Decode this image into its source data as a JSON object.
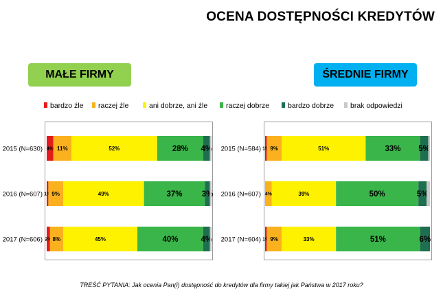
{
  "title": "OCENA DOSTĘPNOŚCI KREDYTÓW",
  "footnote": "TREŚĆ PYTANIA: Jak ocenia Pan(i) dostępność do kredytów dla firmy takiej jak Państwa w 2017 roku?",
  "colors": {
    "bardzo_zle": "#e41a1c",
    "raczej_zle": "#fbb11d",
    "ani_ani": "#fff200",
    "raczej_dobrze": "#3ab54a",
    "bardzo_dobrze": "#1e6f4f",
    "brak": "#c8c8c8"
  },
  "legend": [
    {
      "label": "bardzo źle",
      "color": "#e41a1c"
    },
    {
      "label": "raczej źle",
      "color": "#fbb11d"
    },
    {
      "label": "ani dobrze, ani źle",
      "color": "#fff200"
    },
    {
      "label": "raczej dobrze",
      "color": "#3ab54a"
    },
    {
      "label": "bardzo dobrze",
      "color": "#1e6f4f"
    },
    {
      "label": "brak odpowiedzi",
      "color": "#c8c8c8"
    }
  ],
  "chart_data": [
    {
      "type": "bar",
      "stacked": true,
      "orientation": "horizontal",
      "title": "MAŁE FIRMY",
      "categories": [
        "2015 (N=630)",
        "2016 (N=607)",
        "2017 (N=606)"
      ],
      "series": [
        {
          "name": "bardzo źle",
          "values": [
            4,
            1,
            2
          ],
          "labels": [
            "4%",
            "1%",
            "2%"
          ]
        },
        {
          "name": "raczej źle",
          "values": [
            11,
            9,
            8
          ],
          "labels": [
            "11%",
            "9%",
            "8%"
          ]
        },
        {
          "name": "ani dobrze, ani źle",
          "values": [
            52,
            49,
            45
          ],
          "labels": [
            "52%",
            "49%",
            "45%"
          ]
        },
        {
          "name": "raczej dobrze",
          "values": [
            28,
            37,
            40
          ],
          "labels": [
            "28%",
            "37%",
            "40%"
          ]
        },
        {
          "name": "bardzo dobrze",
          "values": [
            4,
            3,
            4
          ],
          "labels": [
            "4%",
            "3%",
            "4%"
          ]
        },
        {
          "name": "brak odpowiedzi",
          "values": [
            1,
            1,
            1
          ],
          "labels": [
            "",
            "",
            ""
          ]
        }
      ]
    },
    {
      "type": "bar",
      "stacked": true,
      "orientation": "horizontal",
      "title": "ŚREDNIE FIRMY",
      "categories": [
        "2015 (N=584)",
        "2016 (N=607)",
        "2017 (N=604)"
      ],
      "series": [
        {
          "name": "bardzo źle",
          "values": [
            1,
            0,
            1
          ],
          "labels": [
            "1%",
            "",
            "1%"
          ]
        },
        {
          "name": "raczej źle",
          "values": [
            9,
            4,
            9
          ],
          "labels": [
            "9%",
            "4%",
            "9%"
          ]
        },
        {
          "name": "ani dobrze, ani źle",
          "values": [
            51,
            39,
            33
          ],
          "labels": [
            "51%",
            "39%",
            "33%"
          ]
        },
        {
          "name": "raczej dobrze",
          "values": [
            33,
            50,
            51
          ],
          "labels": [
            "33%",
            "50%",
            "51%"
          ]
        },
        {
          "name": "bardzo dobrze",
          "values": [
            5,
            5,
            6
          ],
          "labels": [
            "5%",
            "5%",
            "6%"
          ]
        },
        {
          "name": "brak odpowiedzi",
          "values": [
            1,
            2,
            0
          ],
          "labels": [
            "",
            "",
            ""
          ]
        }
      ]
    }
  ]
}
